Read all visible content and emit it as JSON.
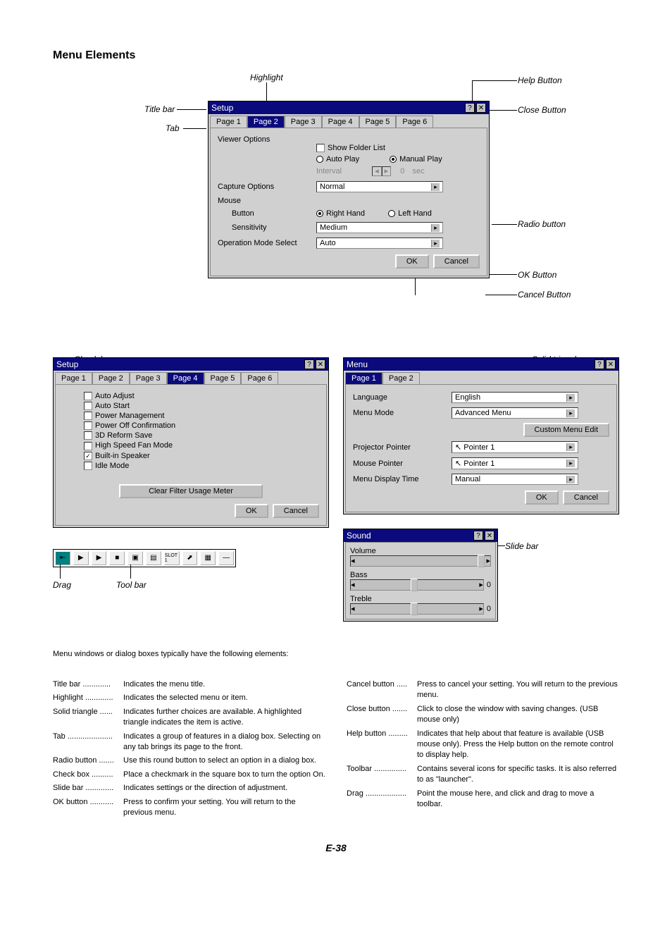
{
  "section_title": "Menu Elements",
  "page_num": "E-38",
  "intro_line": "Menu windows or dialog boxes typically have the following elements:",
  "annotations": {
    "highlight": "Highlight",
    "title_bar": "Title bar",
    "tab": "Tab",
    "help_button": "Help Button",
    "close_button": "Close Button",
    "radio_button": "Radio button",
    "ok_button": "OK Button",
    "cancel_button": "Cancel Button",
    "check_box": "Check box",
    "solid_triangle": "Solid triangle",
    "slide_bar": "Slide bar",
    "drag": "Drag",
    "tool_bar": "Tool bar"
  },
  "dlg_setup": {
    "title": "Setup",
    "tabs": [
      "Page 1",
      "Page 2",
      "Page 3",
      "Page 4",
      "Page 5",
      "Page 6"
    ],
    "active_tab": 1,
    "viewer_options_label": "Viewer Options",
    "show_folder": "Show Folder List",
    "auto_play": "Auto Play",
    "manual_play": "Manual Play",
    "interval": "Interval",
    "sec": "sec",
    "capture_options": "Capture Options",
    "capture_value": "Normal",
    "mouse": "Mouse",
    "button": "Button",
    "right_hand": "Right Hand",
    "left_hand": "Left Hand",
    "sensitivity": "Sensitivity",
    "sensitivity_value": "Medium",
    "op_mode": "Operation Mode Select",
    "op_mode_value": "Auto",
    "ok": "OK",
    "cancel": "Cancel"
  },
  "dlg_setup2": {
    "title": "Setup",
    "tabs": [
      "Page 1",
      "Page 2",
      "Page 3",
      "Page 4",
      "Page 5",
      "Page 6"
    ],
    "active_tab": 3,
    "items": [
      "Auto Adjust",
      "Auto Start",
      "Power Management",
      "Power Off Confirmation",
      "3D Reform Save",
      "High Speed Fan Mode",
      "Built-in Speaker",
      "Idle Mode"
    ],
    "checked": [
      false,
      false,
      false,
      false,
      false,
      false,
      true,
      false
    ],
    "clear_btn": "Clear Filter Usage Meter",
    "ok": "OK",
    "cancel": "Cancel"
  },
  "dlg_menu": {
    "title": "Menu",
    "tabs": [
      "Page 1",
      "Page 2"
    ],
    "active_tab": 0,
    "language": "Language",
    "language_val": "English",
    "menu_mode": "Menu Mode",
    "menu_mode_val": "Advanced Menu",
    "custom_menu_edit": "Custom Menu Edit",
    "proj_pointer": "Projector Pointer",
    "proj_pointer_val": "Pointer 1",
    "mouse_pointer": "Mouse Pointer",
    "mouse_pointer_val": "Pointer 1",
    "menu_disp_time": "Menu Display Time",
    "menu_disp_time_val": "Manual",
    "ok": "OK",
    "cancel": "Cancel"
  },
  "dlg_sound": {
    "title": "Sound",
    "volume": "Volume",
    "bass": "Bass",
    "bass_val": "0",
    "treble": "Treble",
    "treble_val": "0"
  },
  "toolbar_icons": [
    "⇤",
    "▶",
    "▶",
    "■",
    "▣",
    "▤",
    "SLOT 1",
    "⬈",
    "▦",
    "—"
  ],
  "desc_left": [
    {
      "t": "Title bar .............",
      "d": "Indicates the menu title."
    },
    {
      "t": "Highlight .............",
      "d": "Indicates the selected menu or item."
    },
    {
      "t": "Solid triangle ......",
      "d": "Indicates further choices are available. A highlighted triangle indicates the item is active."
    },
    {
      "t": "Tab .....................",
      "d": "Indicates a group of features in a dialog box. Selecting on any tab brings its page to the front."
    },
    {
      "t": "Radio button .......",
      "d": "Use this round button to select an option in a dialog box."
    },
    {
      "t": "Check box ..........",
      "d": "Place a checkmark in the square box to turn the option On."
    },
    {
      "t": "Slide bar .............",
      "d": "Indicates settings or the direction of adjustment."
    },
    {
      "t": "OK button ...........",
      "d": "Press to confirm your setting. You will return to the previous menu."
    }
  ],
  "desc_right": [
    {
      "t": "Cancel button .....",
      "d": "Press to cancel your setting. You will return to the previous menu."
    },
    {
      "t": "Close button .......",
      "d": "Click to close the window with saving changes. (USB mouse only)"
    },
    {
      "t": "Help button .........",
      "d": "Indicates that help about that feature is available (USB mouse only). Press the Help button on the remote control to display help."
    },
    {
      "t": "Toolbar ...............",
      "d": "Contains several icons for specific tasks. It is also referred to as \"launcher\"."
    },
    {
      "t": "Drag ...................",
      "d": "Point the mouse here, and click and drag to move a toolbar."
    }
  ]
}
